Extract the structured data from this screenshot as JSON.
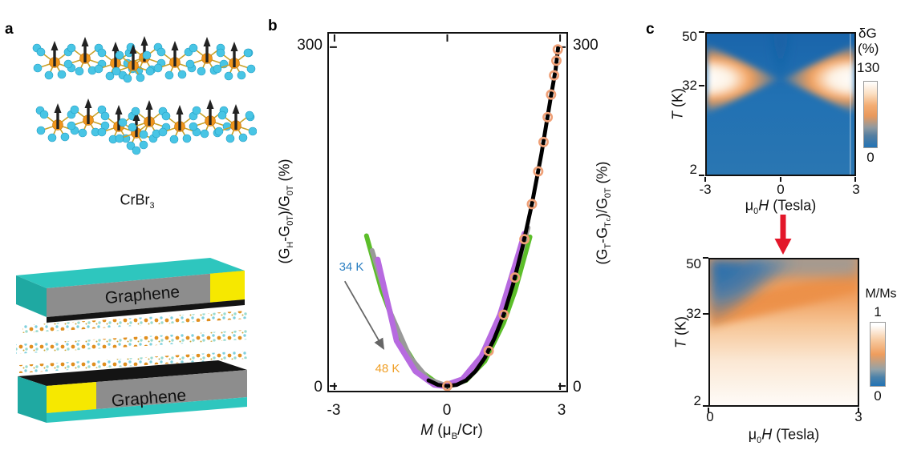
{
  "panels": {
    "a": {
      "label": "a",
      "molecule": {
        "name": "CrBr",
        "sub": "3"
      },
      "device": {
        "top_slab": "Graphene",
        "bottom_slab": "Graphene"
      }
    },
    "b": {
      "label": "b",
      "yl": {
        "t1": "(G",
        "u1": "H",
        "t2": "-G",
        "u2": "0T",
        "t3": ")/G",
        "u3": "0T",
        "t4": " (%)"
      },
      "yr": {
        "t1": "(G",
        "u1": "T",
        "t2": "-G",
        "u2": "T",
        "u2b": "c",
        "t3": ")/G",
        "u3": "0T",
        "t4": " (%)"
      },
      "xl": {
        "t1": "M",
        "t2": " (μ",
        "u1": "B",
        "t3": "/Cr)"
      },
      "yticks": [
        "300",
        "0"
      ],
      "xticks": [
        "-3",
        "0",
        "3"
      ],
      "ann_start": "34 K",
      "ann_end": "48 K",
      "colors": {
        "ann_start": "#2b7fc2",
        "ann_end": "#f0a028",
        "arrow": "#666666"
      }
    },
    "c": {
      "label": "c",
      "ylab": {
        "t1": "T",
        "t2": " (K)"
      },
      "xlab": {
        "t1": "μ",
        "u1": "0",
        "t2": "H",
        "t3": " (Tesla)"
      },
      "top_map": {
        "yticks": [
          "50",
          "32",
          "2"
        ],
        "xticks": [
          "-3",
          "0",
          "3"
        ],
        "cbar": {
          "l1": "δG",
          "l2": "(%)",
          "max": "130",
          "min": "0"
        }
      },
      "bottom_map": {
        "yticks": [
          "50",
          "32",
          "2"
        ],
        "xticks": [
          "0",
          "3"
        ],
        "cbar": {
          "label": "M/Ms",
          "max": "1",
          "min": "0"
        }
      },
      "arrow_color": "#e3172a"
    }
  },
  "chart_data": [
    {
      "id": "panel_b",
      "type": "line",
      "title": "",
      "xlabel": "M (μ_B/Cr)",
      "xlim": [
        -3,
        3
      ],
      "xticks": [
        -3,
        0,
        3
      ],
      "ylabel_left": "(G_H-G_0T)/G_0T (%)",
      "ylabel_right": "(G_T-G_Tc)/G_0T (%)",
      "ylim": [
        0,
        300
      ],
      "yticks": [
        0,
        300
      ],
      "legend_position": "none",
      "grid": false,
      "annotations": [
        {
          "text": "34 K",
          "color": "#2b7fc2",
          "x": -2.5,
          "y": 105
        },
        {
          "text": "48 K",
          "color": "#f0a028",
          "x": -1.6,
          "y": 16
        },
        {
          "type": "arrow",
          "from_label": "34 K",
          "to_label": "48 K",
          "color": "#666666"
        }
      ],
      "series": [
        {
          "id": "t34k-green",
          "name": "(G_H-G_0T)/G_0T vs M near 34 K",
          "color": "#5cbe2a",
          "width": 6,
          "points": [
            [
              -2.15,
              133
            ],
            [
              -1.75,
              85
            ],
            [
              -1.25,
              41
            ],
            [
              -0.75,
              14
            ],
            [
              -0.25,
              2
            ],
            [
              0.05,
              0
            ],
            [
              0.5,
              5
            ],
            [
              1,
              22
            ],
            [
              1.5,
              56
            ],
            [
              1.8,
              84
            ],
            [
              2.2,
              132
            ]
          ]
        },
        {
          "id": "mid-gray",
          "name": "(G_H-G_0T)/G_0T vs M intermediate T",
          "color": "#999999",
          "width": 6,
          "points": [
            [
              -2.0,
              120
            ],
            [
              -1.5,
              64
            ],
            [
              -1.0,
              26
            ],
            [
              -0.5,
              6
            ],
            [
              0,
              0
            ],
            [
              0.5,
              6
            ],
            [
              1.0,
              26
            ],
            [
              1.5,
              64
            ],
            [
              1.9,
              110
            ],
            [
              2.15,
              140
            ]
          ]
        },
        {
          "id": "t48k-purple",
          "name": "(G_H-G_0T)/G_0T vs M near 48 K",
          "color": "#b76ae0",
          "width": 7,
          "points": [
            [
              -1.85,
              112
            ],
            [
              -1.35,
              40
            ],
            [
              -0.85,
              13
            ],
            [
              -0.35,
              1
            ],
            [
              -0.12,
              0
            ],
            [
              0.4,
              6
            ],
            [
              0.9,
              26
            ],
            [
              1.4,
              63
            ],
            [
              1.9,
              118
            ],
            [
              2.05,
              135
            ]
          ]
        },
        {
          "id": "scaling-black",
          "name": "universal scaling curve",
          "color": "#000000",
          "width": 5,
          "points": [
            [
              -0.5,
              5
            ],
            [
              -0.25,
              1
            ],
            [
              0,
              0
            ],
            [
              0.25,
              1
            ],
            [
              0.5,
              5
            ],
            [
              0.75,
              13
            ],
            [
              1.0,
              25
            ],
            [
              1.25,
              42
            ],
            [
              1.5,
              63
            ],
            [
              1.75,
              90
            ],
            [
              2.0,
              123
            ],
            [
              2.25,
              161
            ],
            [
              2.5,
              205
            ],
            [
              2.75,
              255
            ],
            [
              2.88,
              280
            ],
            [
              2.95,
              300
            ]
          ]
        }
      ],
      "markers": {
        "id": "gt-circles",
        "name": "(G_T-G_Tc)/G_0T vs M(T) data",
        "color": "#efa077",
        "marker": "open-circle",
        "points": [
          [
            0,
            0
          ],
          [
            1.1,
            31
          ],
          [
            1.5,
            63
          ],
          [
            1.8,
            96
          ],
          [
            2.05,
            130
          ],
          [
            2.25,
            161
          ],
          [
            2.42,
            190
          ],
          [
            2.56,
            216
          ],
          [
            2.67,
            238
          ],
          [
            2.76,
            258
          ],
          [
            2.84,
            275
          ],
          [
            2.9,
            288
          ],
          [
            2.94,
            298
          ]
        ]
      }
    },
    {
      "id": "panel_c_top",
      "type": "heatmap",
      "xlabel": "μ0H (Tesla)",
      "xlim": [
        -3,
        3
      ],
      "xticks": [
        -3,
        0,
        3
      ],
      "ylabel": "T (K)",
      "ylim": [
        2,
        50
      ],
      "yticks": [
        2,
        32,
        50
      ],
      "colorbar": {
        "label": "δG (%)",
        "min": 0,
        "max": 130,
        "low_color": "#2273b5",
        "mid_color": "#f0a266",
        "high_color": "#ffffff"
      },
      "description": "Blue background with bright white-to-orange bowtie wings centered at T≈32 K; wings are widest at |μ0H|=3 T and pinch to a point near μ0H=0."
    },
    {
      "id": "panel_c_bottom",
      "type": "heatmap",
      "xlabel": "μ0H (Tesla)",
      "xlim": [
        0,
        3
      ],
      "xticks": [
        0,
        3
      ],
      "ylabel": "T (K)",
      "ylim": [
        2,
        50
      ],
      "yticks": [
        2,
        32,
        50
      ],
      "colorbar": {
        "label": "M/Ms",
        "min": 0,
        "max": 1,
        "low_color": "#2273b5",
        "mid_color": "#f0a266",
        "high_color": "#ffffff"
      },
      "description": "M/Ms≈1 (white) at low temperature, an orange crossover band rising from T≈32 K at H=0 to ≈45 K at 3 T, and blue (M/Ms≈0) in the upper-left corner (high T, low field)."
    }
  ]
}
